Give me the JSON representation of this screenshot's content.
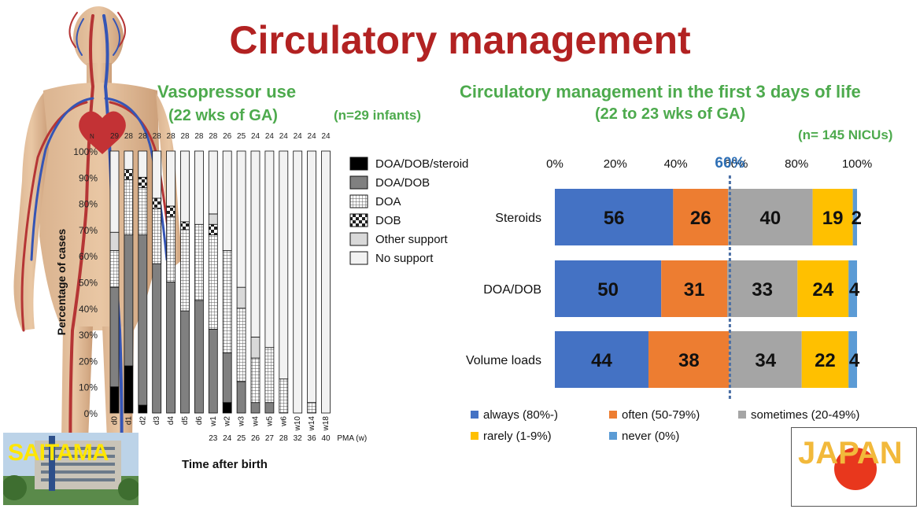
{
  "title": "Circulatory management",
  "left_chart": {
    "title_line1": "Vasopressor use",
    "title_line2": "(22 wks of GA)",
    "n_note": "(n=29 infants)",
    "ylabel": "Percentage of cases",
    "xlabel": "Time after birth",
    "pma_label": "PMA (w)",
    "n_header": "N"
  },
  "right_chart": {
    "title_line1": "Circulatory management in the first 3 days of life",
    "title_line2": "(22 to 23 wks of GA)",
    "n_note": "(n= 145 NICUs)",
    "marker_label": "60%"
  },
  "badges": {
    "left": "SAITAMA",
    "right": "JAPAN"
  },
  "colors": {
    "title": "#b22222",
    "green": "#4daa4d",
    "always": "#4472c4",
    "often": "#ed7d31",
    "sometimes": "#a5a5a5",
    "rarely": "#ffc000",
    "never": "#5b9bd5"
  },
  "chart_data": [
    {
      "type": "bar",
      "subtype": "stacked-100",
      "title": "Vasopressor use (22 wks of GA)",
      "xlabel": "Time after birth",
      "ylabel": "Percentage of cases",
      "ylim": [
        0,
        100
      ],
      "yticks": [
        "0%",
        "10%",
        "20%",
        "30%",
        "40%",
        "50%",
        "60%",
        "70%",
        "80%",
        "90%",
        "100%"
      ],
      "categories": [
        "d0",
        "d1",
        "d2",
        "d3",
        "d4",
        "d5",
        "d6",
        "w1",
        "w2",
        "w3",
        "w4",
        "w5",
        "w6",
        "w10",
        "w14",
        "w18"
      ],
      "n": [
        "29",
        "28",
        "28",
        "28",
        "28",
        "28",
        "28",
        "28",
        "26",
        "25",
        "24",
        "24",
        "24",
        "24",
        "24",
        "24"
      ],
      "pma": [
        "",
        "",
        "",
        "",
        "",
        "",
        "",
        "23",
        "24",
        "25",
        "26",
        "27",
        "28",
        "32",
        "36",
        "40"
      ],
      "series": [
        {
          "name": "DOA/DOB/steroid",
          "values": [
            10,
            18,
            3,
            0,
            0,
            0,
            0,
            0,
            4,
            0,
            0,
            0,
            0,
            0,
            0,
            0
          ]
        },
        {
          "name": "DOA/DOB",
          "values": [
            38,
            50,
            65,
            57,
            50,
            39,
            43,
            32,
            19,
            12,
            4,
            4,
            0,
            0,
            0,
            0
          ]
        },
        {
          "name": "DOA",
          "values": [
            14,
            21,
            18,
            21,
            25,
            31,
            29,
            36,
            39,
            28,
            17,
            21,
            13,
            0,
            4,
            0
          ]
        },
        {
          "name": "DOB",
          "values": [
            0,
            4,
            4,
            4,
            4,
            3,
            0,
            4,
            0,
            0,
            0,
            0,
            0,
            0,
            0,
            0
          ]
        },
        {
          "name": "Other support",
          "values": [
            7,
            0,
            0,
            0,
            0,
            0,
            0,
            4,
            0,
            8,
            8,
            0,
            0,
            0,
            0,
            0
          ]
        },
        {
          "name": "No support",
          "values": [
            31,
            7,
            10,
            18,
            21,
            27,
            28,
            24,
            38,
            52,
            71,
            75,
            87,
            100,
            96,
            100
          ]
        }
      ],
      "legend_position": "right"
    },
    {
      "type": "bar",
      "subtype": "horizontal-stacked",
      "title": "Circulatory management in the first 3 days of life (22 to 23 wks of GA)",
      "categories": [
        "Steroids",
        "DOA/DOB",
        "Volume loads"
      ],
      "xticks": [
        "0%",
        "20%",
        "40%",
        "60%",
        "80%",
        "100%"
      ],
      "xlim": [
        0,
        100
      ],
      "reference_line": 60,
      "series": [
        {
          "name": "always (80%-)",
          "values": [
            56,
            50,
            44
          ]
        },
        {
          "name": "often (50-79%)",
          "values": [
            26,
            31,
            38
          ]
        },
        {
          "name": "sometimes (20-49%)",
          "values": [
            40,
            33,
            34
          ]
        },
        {
          "name": "rarely (1-9%)",
          "values": [
            19,
            24,
            22
          ]
        },
        {
          "name": "never (0%)",
          "values": [
            2,
            4,
            4
          ]
        }
      ],
      "legend_position": "bottom"
    }
  ]
}
